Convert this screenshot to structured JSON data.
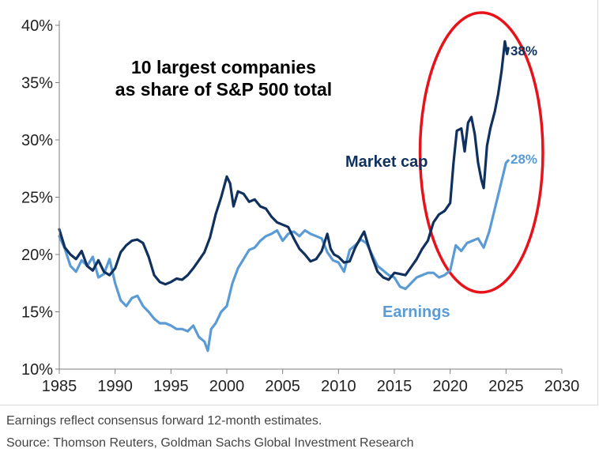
{
  "chart_data": {
    "type": "line",
    "title_lines": [
      "10 largest companies",
      "as share of S&P 500 total"
    ],
    "xlim": [
      1985,
      2030
    ],
    "ylim": [
      10,
      40
    ],
    "x_ticks": [
      1985,
      1990,
      1995,
      2000,
      2005,
      2010,
      2015,
      2020,
      2025,
      2030
    ],
    "x_tick_labels": [
      "1985",
      "1990",
      "1995",
      "2000",
      "2005",
      "2010",
      "2015",
      "2020",
      "2025",
      "2030"
    ],
    "y_ticks": [
      10,
      15,
      20,
      25,
      30,
      35,
      40
    ],
    "y_tick_labels": [
      "10%",
      "15%",
      "20%",
      "25%",
      "30%",
      "35%",
      "40%"
    ],
    "grid": false,
    "series": [
      {
        "name": "Market cap",
        "color": "#10305e",
        "end_label": "38%",
        "points": [
          [
            1985.0,
            22.2
          ],
          [
            1985.5,
            20.6
          ],
          [
            1986.0,
            20.0
          ],
          [
            1986.5,
            19.6
          ],
          [
            1987.0,
            20.3
          ],
          [
            1987.5,
            19.0
          ],
          [
            1988.0,
            18.6
          ],
          [
            1988.5,
            19.5
          ],
          [
            1989.0,
            18.5
          ],
          [
            1989.5,
            18.2
          ],
          [
            1990.0,
            18.8
          ],
          [
            1990.5,
            20.2
          ],
          [
            1991.0,
            20.8
          ],
          [
            1991.5,
            21.2
          ],
          [
            1992.0,
            21.3
          ],
          [
            1992.5,
            21.0
          ],
          [
            1993.0,
            19.8
          ],
          [
            1993.5,
            18.2
          ],
          [
            1994.0,
            17.6
          ],
          [
            1994.5,
            17.4
          ],
          [
            1995.0,
            17.6
          ],
          [
            1995.5,
            17.9
          ],
          [
            1996.0,
            17.8
          ],
          [
            1996.5,
            18.2
          ],
          [
            1997.0,
            18.8
          ],
          [
            1997.5,
            19.5
          ],
          [
            1998.0,
            20.2
          ],
          [
            1998.5,
            21.5
          ],
          [
            1999.0,
            23.5
          ],
          [
            1999.5,
            25.0
          ],
          [
            2000.0,
            26.8
          ],
          [
            2000.3,
            26.2
          ],
          [
            2000.6,
            24.2
          ],
          [
            2001.0,
            25.5
          ],
          [
            2001.5,
            25.3
          ],
          [
            2002.0,
            24.6
          ],
          [
            2002.5,
            24.8
          ],
          [
            2003.0,
            24.2
          ],
          [
            2003.5,
            24.0
          ],
          [
            2004.0,
            23.3
          ],
          [
            2004.5,
            22.8
          ],
          [
            2005.0,
            22.6
          ],
          [
            2005.5,
            22.4
          ],
          [
            2006.0,
            21.4
          ],
          [
            2006.5,
            20.5
          ],
          [
            2007.0,
            20.0
          ],
          [
            2007.5,
            19.4
          ],
          [
            2008.0,
            19.6
          ],
          [
            2008.5,
            20.3
          ],
          [
            2009.0,
            21.8
          ],
          [
            2009.3,
            20.5
          ],
          [
            2009.6,
            20.0
          ],
          [
            2010.0,
            19.8
          ],
          [
            2010.5,
            19.3
          ],
          [
            2011.0,
            19.4
          ],
          [
            2011.5,
            20.6
          ],
          [
            2012.0,
            21.5
          ],
          [
            2012.3,
            22.0
          ],
          [
            2012.6,
            21.0
          ],
          [
            2013.0,
            19.8
          ],
          [
            2013.5,
            18.5
          ],
          [
            2014.0,
            18.0
          ],
          [
            2014.5,
            17.8
          ],
          [
            2015.0,
            18.4
          ],
          [
            2015.5,
            18.3
          ],
          [
            2016.0,
            18.2
          ],
          [
            2016.5,
            18.9
          ],
          [
            2017.0,
            19.6
          ],
          [
            2017.5,
            20.5
          ],
          [
            2018.0,
            21.2
          ],
          [
            2018.5,
            22.8
          ],
          [
            2019.0,
            23.5
          ],
          [
            2019.5,
            23.8
          ],
          [
            2020.0,
            24.5
          ],
          [
            2020.3,
            28.0
          ],
          [
            2020.6,
            30.8
          ],
          [
            2021.0,
            31.0
          ],
          [
            2021.3,
            29.0
          ],
          [
            2021.6,
            31.5
          ],
          [
            2021.9,
            32.0
          ],
          [
            2022.2,
            30.5
          ],
          [
            2022.5,
            28.0
          ],
          [
            2022.8,
            26.5
          ],
          [
            2023.0,
            25.8
          ],
          [
            2023.3,
            29.5
          ],
          [
            2023.6,
            31.0
          ],
          [
            2024.0,
            32.5
          ],
          [
            2024.3,
            34.0
          ],
          [
            2024.6,
            36.0
          ],
          [
            2024.9,
            38.6
          ],
          [
            2025.1,
            37.5
          ],
          [
            2025.2,
            38.0
          ]
        ]
      },
      {
        "name": "Earnings",
        "color": "#5b9bd5",
        "end_label": "28%",
        "points": [
          [
            1985.0,
            21.6
          ],
          [
            1985.5,
            20.5
          ],
          [
            1986.0,
            19.0
          ],
          [
            1986.5,
            18.5
          ],
          [
            1987.0,
            19.5
          ],
          [
            1987.5,
            19.0
          ],
          [
            1988.0,
            19.8
          ],
          [
            1988.5,
            18.0
          ],
          [
            1989.0,
            18.3
          ],
          [
            1989.5,
            19.6
          ],
          [
            1990.0,
            17.5
          ],
          [
            1990.5,
            16.0
          ],
          [
            1991.0,
            15.5
          ],
          [
            1991.5,
            16.2
          ],
          [
            1992.0,
            16.4
          ],
          [
            1992.5,
            15.5
          ],
          [
            1993.0,
            15.0
          ],
          [
            1993.5,
            14.4
          ],
          [
            1994.0,
            14.0
          ],
          [
            1994.5,
            14.0
          ],
          [
            1995.0,
            13.8
          ],
          [
            1995.5,
            13.5
          ],
          [
            1996.0,
            13.5
          ],
          [
            1996.5,
            13.3
          ],
          [
            1997.0,
            13.8
          ],
          [
            1997.5,
            12.8
          ],
          [
            1998.0,
            12.4
          ],
          [
            1998.3,
            11.6
          ],
          [
            1998.6,
            13.5
          ],
          [
            1999.0,
            14.0
          ],
          [
            1999.5,
            15.0
          ],
          [
            2000.0,
            15.5
          ],
          [
            2000.5,
            17.5
          ],
          [
            2001.0,
            18.8
          ],
          [
            2001.5,
            19.6
          ],
          [
            2002.0,
            20.4
          ],
          [
            2002.5,
            20.6
          ],
          [
            2003.0,
            21.2
          ],
          [
            2003.5,
            21.6
          ],
          [
            2004.0,
            21.8
          ],
          [
            2004.5,
            22.1
          ],
          [
            2005.0,
            21.2
          ],
          [
            2005.5,
            21.8
          ],
          [
            2006.0,
            22.0
          ],
          [
            2006.5,
            21.6
          ],
          [
            2007.0,
            22.1
          ],
          [
            2007.5,
            21.8
          ],
          [
            2008.0,
            21.6
          ],
          [
            2008.5,
            21.4
          ],
          [
            2009.0,
            20.2
          ],
          [
            2009.5,
            19.5
          ],
          [
            2010.0,
            19.3
          ],
          [
            2010.5,
            18.5
          ],
          [
            2011.0,
            20.4
          ],
          [
            2011.5,
            20.8
          ],
          [
            2012.0,
            21.3
          ],
          [
            2012.5,
            21.0
          ],
          [
            2013.0,
            20.0
          ],
          [
            2013.5,
            19.0
          ],
          [
            2014.0,
            18.6
          ],
          [
            2014.5,
            18.2
          ],
          [
            2015.0,
            18.0
          ],
          [
            2015.5,
            17.2
          ],
          [
            2016.0,
            17.0
          ],
          [
            2016.5,
            17.5
          ],
          [
            2017.0,
            18.0
          ],
          [
            2017.5,
            18.2
          ],
          [
            2018.0,
            18.4
          ],
          [
            2018.5,
            18.4
          ],
          [
            2019.0,
            18.0
          ],
          [
            2019.5,
            18.2
          ],
          [
            2020.0,
            18.6
          ],
          [
            2020.5,
            20.8
          ],
          [
            2021.0,
            20.3
          ],
          [
            2021.5,
            21.0
          ],
          [
            2022.0,
            21.2
          ],
          [
            2022.5,
            21.4
          ],
          [
            2023.0,
            20.6
          ],
          [
            2023.5,
            22.0
          ],
          [
            2024.0,
            24.0
          ],
          [
            2024.5,
            26.0
          ],
          [
            2025.0,
            28.0
          ],
          [
            2025.2,
            28.2
          ]
        ]
      }
    ],
    "annotations": {
      "market_cap_label": "Market cap",
      "earnings_label": "Earnings",
      "highlight": {
        "shape": "ellipse",
        "color": "#e8131a",
        "center": [
          2022.8,
          28.9
        ],
        "radius_x": 5.5,
        "radius_y": 12.2
      }
    },
    "footnotes": [
      "Earnings reflect consensus forward 12-month estimates.",
      "Source: Thomson Reuters, Goldman Sachs Global Investment Research"
    ]
  }
}
